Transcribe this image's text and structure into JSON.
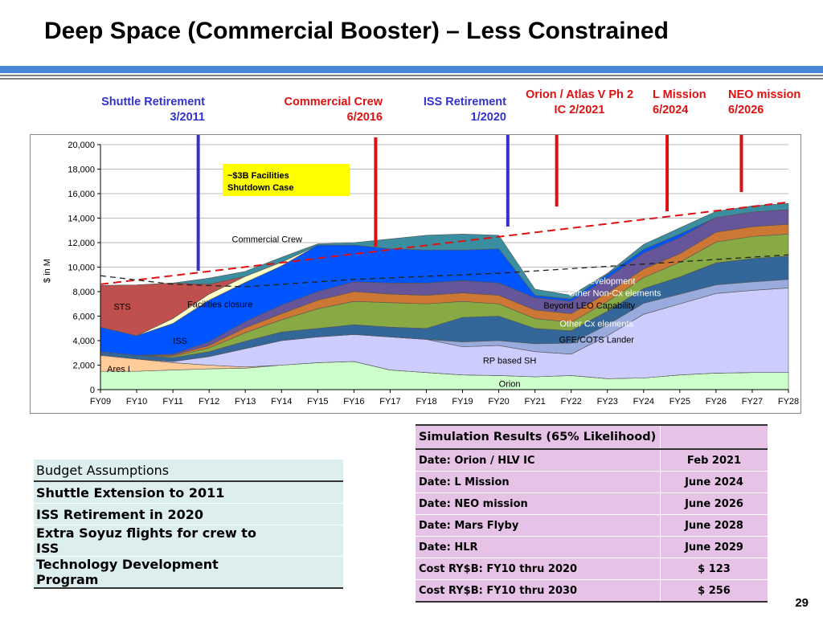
{
  "slide": {
    "title": "Deep Space (Commercial Booster) – Less Constrained",
    "page_number": "29"
  },
  "milestones": [
    {
      "line1": "Shuttle Retirement",
      "line2": "3/2011",
      "color": "#3333cc"
    },
    {
      "line1": "Commercial Crew",
      "line2": "6/2016",
      "color": "#dd1111"
    },
    {
      "line1": "ISS Retirement",
      "line2": "1/2020",
      "color": "#3333cc"
    },
    {
      "line1": "Orion / Atlas V Ph 2",
      "line2": "IC 2/2021",
      "color": "#dd1111"
    },
    {
      "line1": "L Mission",
      "line2": "6/2024",
      "color": "#dd1111"
    },
    {
      "line1": "NEO mission",
      "line2": "6/2026",
      "color": "#dd1111"
    }
  ],
  "chart_data": {
    "type": "area",
    "stacked": true,
    "ylabel": "$ in M",
    "ylim": [
      0,
      20000
    ],
    "yticks": [
      0,
      2000,
      4000,
      6000,
      8000,
      10000,
      12000,
      14000,
      16000,
      18000,
      20000
    ],
    "ytick_labels": [
      "0",
      "2,000",
      "4,000",
      "6,000",
      "8,000",
      "10,000",
      "12,000",
      "14,000",
      "16,000",
      "18,000",
      "20,000"
    ],
    "x": [
      "FY09",
      "FY10",
      "FY11",
      "FY12",
      "FY13",
      "FY14",
      "FY15",
      "FY16",
      "FY17",
      "FY18",
      "FY19",
      "FY20",
      "FY21",
      "FY22",
      "FY23",
      "FY24",
      "FY25",
      "FY26",
      "FY27",
      "FY28"
    ],
    "series": [
      {
        "name": "Orion",
        "color": "#ccffcc",
        "values": [
          1500,
          1500,
          1600,
          1700,
          1750,
          2000,
          2200,
          2300,
          1600,
          1400,
          1200,
          1150,
          1050,
          1150,
          900,
          950,
          1200,
          1350,
          1400,
          1400
        ]
      },
      {
        "name": "Ares I",
        "color": "#ffcc99",
        "values": [
          1300,
          1000,
          600,
          300,
          100,
          0,
          0,
          0,
          0,
          0,
          0,
          0,
          0,
          0,
          0,
          0,
          0,
          0,
          0,
          0
        ]
      },
      {
        "name": "RP based SH",
        "color": "#ccccff",
        "values": [
          0,
          0,
          100,
          700,
          1500,
          2000,
          2100,
          2200,
          2700,
          2700,
          2300,
          2450,
          2050,
          1750,
          3500,
          5200,
          5800,
          6500,
          6700,
          6900
        ]
      },
      {
        "name": "GFE/COTS Lander",
        "color": "#99aadd",
        "values": [
          0,
          0,
          0,
          0,
          0,
          0,
          0,
          0,
          0,
          0,
          400,
          400,
          650,
          900,
          900,
          900,
          800,
          700,
          700,
          700
        ]
      },
      {
        "name": "ISS",
        "color": "#336699",
        "values": [
          300,
          300,
          300,
          400,
          600,
          700,
          700,
          800,
          800,
          900,
          2000,
          2000,
          1250,
          1000,
          1100,
          1200,
          1400,
          1800,
          1900,
          1900
        ]
      },
      {
        "name": "Other Cx elements",
        "color": "#88aa44",
        "values": [
          0,
          0,
          100,
          300,
          700,
          1000,
          1600,
          1900,
          2000,
          2000,
          1300,
          1000,
          800,
          700,
          800,
          900,
          1200,
          1700,
          1800,
          1800
        ]
      },
      {
        "name": "Beyond LEO Capability",
        "color": "#cc7733",
        "values": [
          0,
          0,
          100,
          200,
          400,
          500,
          700,
          800,
          700,
          700,
          700,
          700,
          700,
          700,
          700,
          700,
          700,
          800,
          800,
          800
        ]
      },
      {
        "name": "Other Non-Cx elements",
        "color": "#665599",
        "values": [
          0,
          0,
          100,
          300,
          500,
          700,
          700,
          800,
          900,
          1000,
          1000,
          1000,
          1000,
          1000,
          1200,
          1300,
          1300,
          1200,
          1200,
          1200
        ]
      },
      {
        "name": "Technology Development",
        "color": "#0055ff",
        "values": [
          2000,
          1600,
          2500,
          3400,
          3200,
          3200,
          3800,
          3000,
          2800,
          2700,
          2500,
          2800,
          200,
          200,
          300,
          300,
          300,
          0,
          0,
          0
        ]
      },
      {
        "name": "Facilities closure",
        "color": "#ffffcc",
        "values": [
          0,
          0,
          400,
          500,
          500,
          300,
          0,
          0,
          0,
          0,
          0,
          0,
          0,
          0,
          0,
          0,
          0,
          0,
          0,
          0
        ]
      },
      {
        "name": "STS",
        "color": "#c0504d",
        "values": [
          3400,
          4150,
          2900,
          800,
          0,
          0,
          0,
          0,
          0,
          0,
          0,
          0,
          0,
          0,
          0,
          0,
          0,
          0,
          0,
          0
        ]
      },
      {
        "name": "Commercial Crew",
        "color": "#3b8ea0",
        "values": [
          0,
          0,
          0,
          500,
          400,
          400,
          100,
          200,
          800,
          1200,
          1300,
          1100,
          500,
          300,
          100,
          400,
          500,
          500,
          500,
          500
        ]
      }
    ],
    "trend_lines": [
      {
        "style": "dashed",
        "color": "#dd1111",
        "x": [
          "FY09",
          "FY28"
        ],
        "y": [
          8600,
          15300
        ]
      },
      {
        "style": "dashed",
        "color": "#222222",
        "x": [
          "FY09",
          "FY11",
          "FY13",
          "FY16",
          "FY20",
          "FY28"
        ],
        "y": [
          9300,
          8600,
          8400,
          9000,
          9500,
          11000
        ]
      }
    ],
    "callout": {
      "text_line1": "~$3B Facilities",
      "text_line2": "Shutdown Case",
      "color": "#ffff00"
    }
  },
  "budget_table": {
    "header": "Budget Assumptions",
    "rows": [
      "Shuttle Extension to 2011",
      "ISS Retirement in 2020",
      "Extra Soyuz flights for crew to ISS",
      "Technology Development Program"
    ]
  },
  "simulation_table": {
    "header": "Simulation Results (65% Likelihood)",
    "rows": [
      {
        "label": "Date: Orion / HLV IC",
        "value": "Feb 2021"
      },
      {
        "label": "Date: L Mission",
        "value": "June 2024"
      },
      {
        "label": "Date: NEO mission",
        "value": "June 2026"
      },
      {
        "label": "Date: Mars Flyby",
        "value": "June 2028"
      },
      {
        "label": "Date: HLR",
        "value": "June 2029"
      },
      {
        "label": "Cost RY$B: FY10 thru 2020",
        "value": "$ 123"
      },
      {
        "label": "Cost RY$B: FY10 thru 2030",
        "value": "$ 256"
      }
    ]
  }
}
